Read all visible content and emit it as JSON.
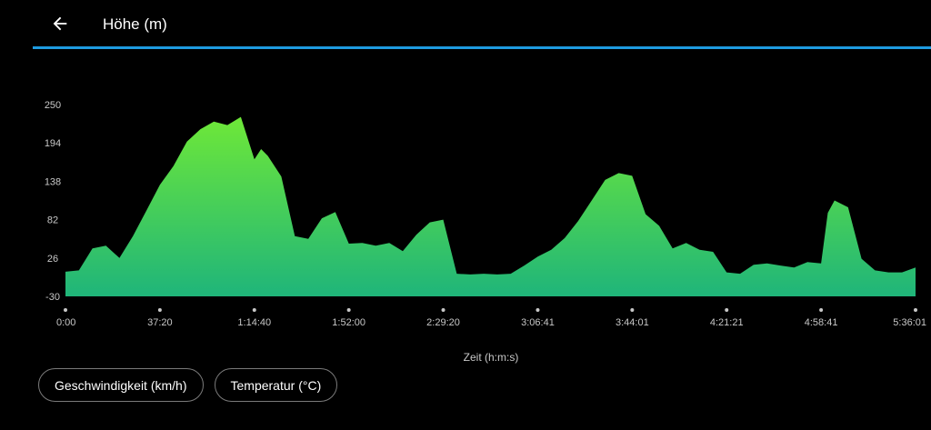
{
  "header": {
    "title": "Höhe (m)",
    "back_icon": "arrow-left-icon"
  },
  "colors": {
    "accent_line": "#1e9be0",
    "fill_top": "#6ee838",
    "fill_bottom": "#1fb57a",
    "background": "#000000",
    "axis_text": "#c8c8c8"
  },
  "chips": [
    {
      "label": "Geschwindigkeit (km/h)"
    },
    {
      "label": "Temperatur (°C)"
    }
  ],
  "chart_data": {
    "type": "area",
    "xlabel": "Zeit (h:m:s)",
    "ylabel": "",
    "ylim": [
      -30,
      250
    ],
    "y_ticks": [
      "250",
      "194",
      "138",
      "82",
      "26",
      "-30"
    ],
    "x_ticks": [
      "0:00",
      "37:20",
      "1:14:40",
      "1:52:00",
      "2:29:20",
      "3:06:41",
      "3:44:01",
      "4:21:21",
      "4:58:41",
      "5:36:01"
    ],
    "x_tick_seconds": [
      0,
      2240,
      4480,
      6720,
      8960,
      11201,
      13441,
      15681,
      17921,
      20161
    ],
    "grid": false,
    "legend": "none",
    "series": [
      {
        "x": [
          0,
          320,
          640,
          960,
          1280,
          1600,
          1920,
          2240,
          2560,
          2880,
          3200,
          3520,
          3840,
          4160,
          4480,
          4640,
          4800,
          5120,
          5440,
          5760,
          6080,
          6400,
          6720,
          7040,
          7360,
          7680,
          8000,
          8320,
          8640,
          8960,
          9280,
          9600,
          9920,
          10240,
          10560,
          10880,
          11201,
          11520,
          11840,
          12160,
          12480,
          12800,
          13120,
          13441,
          13760,
          14080,
          14400,
          14720,
          15040,
          15360,
          15681,
          16000,
          16320,
          16640,
          16960,
          17280,
          17600,
          17921,
          18080,
          18240,
          18560,
          18880,
          19200,
          19520,
          19840,
          20161
        ],
        "values": [
          6,
          8,
          40,
          44,
          26,
          58,
          95,
          133,
          160,
          196,
          214,
          225,
          220,
          232,
          170,
          185,
          175,
          145,
          58,
          54,
          84,
          93,
          47,
          48,
          44,
          48,
          36,
          60,
          78,
          82,
          3,
          2,
          3,
          2,
          3,
          15,
          28,
          38,
          55,
          80,
          110,
          140,
          150,
          146,
          90,
          73,
          40,
          48,
          38,
          35,
          5,
          3,
          16,
          18,
          15,
          12,
          20,
          18,
          92,
          110,
          100,
          25,
          8,
          5,
          5,
          12
        ]
      }
    ]
  }
}
